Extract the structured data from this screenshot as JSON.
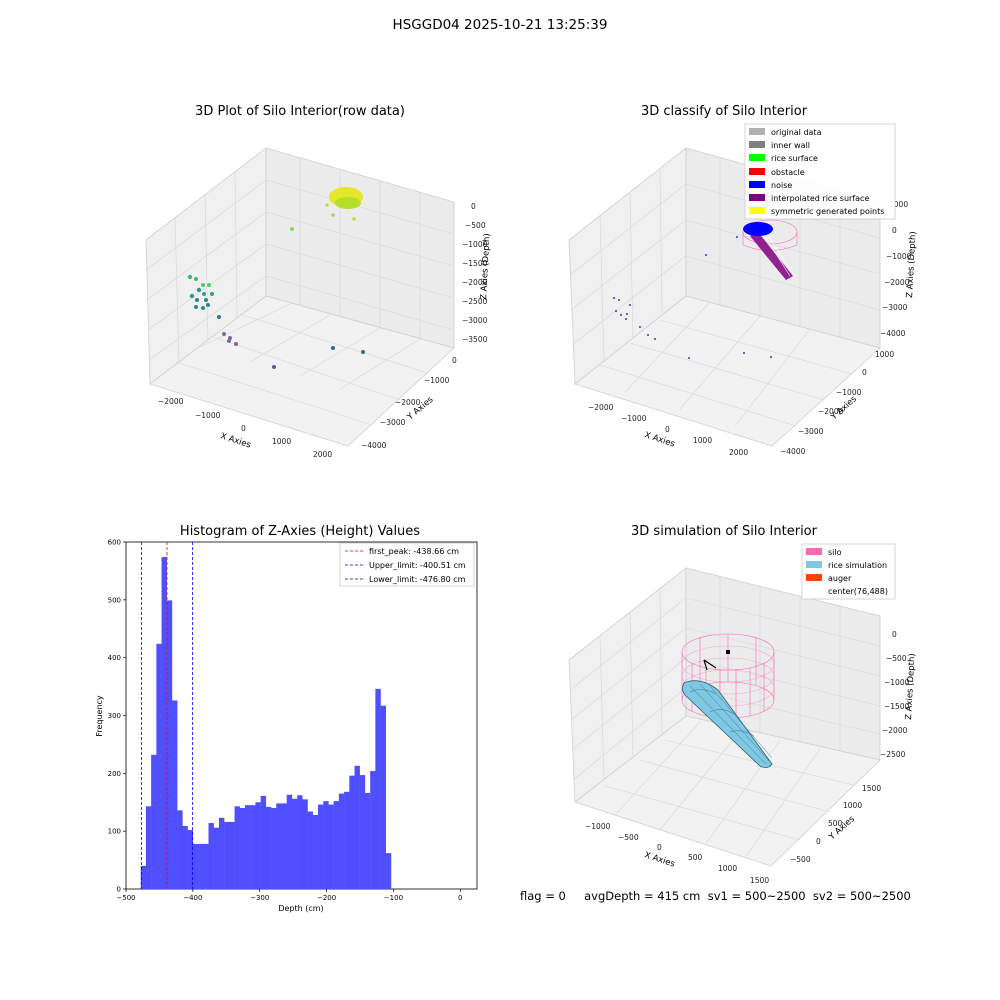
{
  "suptitle": "HSGGD04 2025-10-21 13:25:39",
  "footer": "flag = 0     avgDepth = 415 cm  sv1 = 500~2500  sv2 = 500~2500",
  "colors": {
    "histogram_bar": "#4f4ffd",
    "first_peak_line": "#ff0000",
    "limit_lines": "#0000ff",
    "silo": "#ff69b4",
    "rice_simulation": "#7ec8e3",
    "auger": "#ff4500",
    "rice_surface_raw": "#e5e512",
    "interpolated": "#800080",
    "noise": "#0000ff"
  },
  "chart_data": [
    {
      "type": "scatter",
      "title": "3D Plot of Silo Interior(row data)",
      "xlabel": "X Axies",
      "ylabel": "Y Axies",
      "zlabel": "Z Axies (Depth)",
      "x_ticks": [
        "−2000",
        "−1000",
        "0",
        "1000",
        "2000"
      ],
      "y_ticks": [
        "0",
        "−1000",
        "−2000",
        "−3000",
        "−4000"
      ],
      "z_ticks": [
        "0",
        "−500",
        "−1000",
        "−1500",
        "−2000",
        "−2500",
        "−3000",
        "−3500"
      ]
    },
    {
      "type": "scatter",
      "title": "3D classify of Silo Interior",
      "xlabel": "X Axies",
      "ylabel": "Y Axies",
      "zlabel": "Z Axies (Depth)",
      "x_ticks": [
        "−2000",
        "−1000",
        "0",
        "1000",
        "2000"
      ],
      "y_ticks": [
        "1000",
        "0",
        "−1000",
        "−2000",
        "−3000",
        "−4000"
      ],
      "z_ticks": [
        "1000",
        "0",
        "−1000",
        "−2000",
        "−3000",
        "−4000"
      ],
      "legend": [
        {
          "label": "original data",
          "color": "#b0b0b0"
        },
        {
          "label": "inner wall",
          "color": "#808080"
        },
        {
          "label": "rice surface",
          "color": "#00ff00"
        },
        {
          "label": "obstacle",
          "color": "#ff0000"
        },
        {
          "label": "noise",
          "color": "#0000ff"
        },
        {
          "label": "interpolated rice surface",
          "color": "#800080"
        },
        {
          "label": "symmetric generated points",
          "color": "#ffff00"
        }
      ]
    },
    {
      "type": "bar",
      "title": "Histogram of Z-Axies (Height) Values",
      "xlabel": "Depth (cm)",
      "ylabel": "Frequency",
      "xlim": [
        -500,
        25
      ],
      "ylim": [
        0,
        600
      ],
      "x_ticks": [
        -500,
        -400,
        -300,
        -200,
        -100,
        0
      ],
      "y_ticks": [
        0,
        100,
        200,
        300,
        400,
        500,
        600
      ],
      "bin_start": -478,
      "bin_width": 7.8,
      "values": [
        40,
        143,
        232,
        424,
        574,
        499,
        326,
        136,
        109,
        102,
        78,
        78,
        78,
        114,
        106,
        123,
        116,
        116,
        143,
        140,
        145,
        145,
        150,
        161,
        142,
        140,
        148,
        148,
        163,
        156,
        162,
        155,
        134,
        128,
        146,
        152,
        146,
        152,
        165,
        168,
        196,
        213,
        197,
        166,
        204,
        346,
        317,
        62
      ],
      "vlines": [
        {
          "label": "first_peak: -438.66 cm",
          "x": -438.66,
          "color": "#ff0000"
        },
        {
          "label": "Upper_limit: -400.51 cm",
          "x": -400.51,
          "color": "#0000ff"
        },
        {
          "label": "Lower_limit: -476.80 cm",
          "x": -476.8,
          "color": "#0000ff"
        }
      ]
    },
    {
      "type": "surface",
      "title": "3D simulation of Silo Interior",
      "xlabel": "X Axies",
      "ylabel": "Y Axies",
      "zlabel": "Z Axies (Depth)",
      "x_ticks": [
        "−1000",
        "−500",
        "0",
        "500",
        "1000",
        "1500"
      ],
      "y_ticks": [
        "1500",
        "1000",
        "500",
        "0",
        "−500"
      ],
      "z_ticks": [
        "0",
        "−500",
        "−1000",
        "−1500",
        "−2000",
        "−2500"
      ],
      "legend": [
        {
          "label": "silo",
          "color": "#ff69b4"
        },
        {
          "label": "rice simulation",
          "color": "#7ec8e3"
        },
        {
          "label": "auger",
          "color": "#ff4500"
        },
        {
          "label": "center(76,488)",
          "color": ""
        }
      ]
    }
  ]
}
